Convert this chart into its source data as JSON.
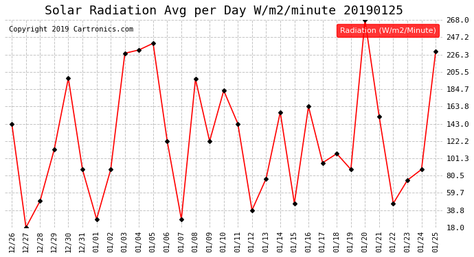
{
  "title": "Solar Radiation Avg per Day W/m2/minute 20190125",
  "copyright": "Copyright 2019 Cartronics.com",
  "legend_label": "Radiation (W/m2/Minute)",
  "dates": [
    "12/26",
    "12/27",
    "12/28",
    "12/29",
    "12/30",
    "12/31",
    "01/01",
    "01/02",
    "01/03",
    "01/04",
    "01/05",
    "01/06",
    "01/07",
    "01/08",
    "01/09",
    "01/10",
    "01/11",
    "01/12",
    "01/13",
    "01/14",
    "01/15",
    "01/16",
    "01/17",
    "01/18",
    "01/19",
    "01/20",
    "01/21",
    "01/22",
    "01/23",
    "01/24",
    "01/25"
  ],
  "values": [
    143.0,
    18.0,
    50.0,
    112.0,
    198.0,
    88.0,
    28.0,
    88.0,
    228.0,
    232.0,
    240.0,
    122.0,
    28.0,
    197.0,
    122.0,
    183.0,
    143.0,
    38.8,
    77.0,
    157.0,
    47.0,
    163.8,
    96.0,
    107.0,
    88.0,
    268.0,
    152.0,
    47.0,
    75.0,
    88.0,
    230.0
  ],
  "ylim": [
    18.0,
    268.0
  ],
  "yticks": [
    18.0,
    38.8,
    59.7,
    80.5,
    101.3,
    122.2,
    143.0,
    163.8,
    184.7,
    205.5,
    226.3,
    247.2,
    268.0
  ],
  "line_color": "#ff0000",
  "marker_color": "#000000",
  "bg_color": "#ffffff",
  "grid_color": "#aaaaaa",
  "title_fontsize": 13,
  "legend_bg": "#ff0000",
  "legend_fg": "#ffffff"
}
